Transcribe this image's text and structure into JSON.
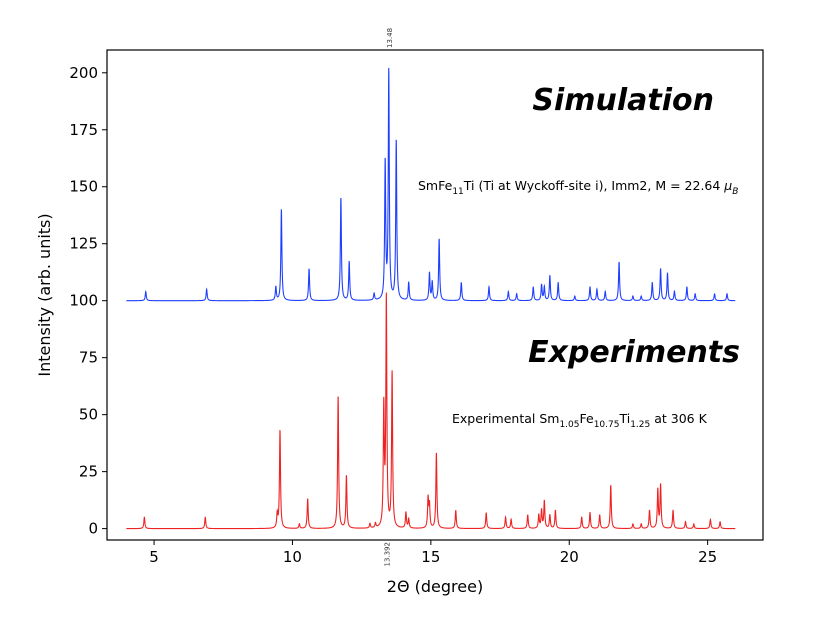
{
  "chart_data": {
    "type": "line",
    "xlabel": "2Θ (degree)",
    "ylabel": "Intensity (arb. units)",
    "xlim": [
      3.3,
      27.0
    ],
    "ylim": [
      -5,
      210
    ],
    "xticks": [
      5,
      10,
      15,
      20,
      25
    ],
    "yticks": [
      0,
      25,
      50,
      75,
      100,
      125,
      150,
      175,
      200
    ],
    "grid": false,
    "legend": "none",
    "annotations": {
      "simulation_title": "Simulation",
      "simulation_desc": {
        "pre": "SmFe",
        "sub1": "11",
        "mid": "Ti (Ti at Wyckoff-site i), Imm2, M = 22.64 ",
        "mu": "μ",
        "sub2": "B"
      },
      "experiments_title": "Experiments",
      "experiment_desc": {
        "pre": "Experimental Sm",
        "sub1": "1.05",
        "mid1": "Fe",
        "sub2": "10.75",
        "mid2": "Ti",
        "sub3": "1.25",
        "post": " at 306 K"
      },
      "peak_top": {
        "x": 13.48,
        "label": "13.48"
      },
      "peak_bottom": {
        "x": 13.392,
        "label": "13.392"
      }
    },
    "series": [
      {
        "color": "#1f3fff",
        "baseline": 100,
        "x_range": [
          4.0,
          26.0
        ],
        "peaks": [
          [
            4.7,
            4
          ],
          [
            6.9,
            5
          ],
          [
            9.4,
            6
          ],
          [
            9.6,
            40
          ],
          [
            10.6,
            14
          ],
          [
            11.75,
            45
          ],
          [
            12.05,
            17
          ],
          [
            12.95,
            3
          ],
          [
            13.35,
            60
          ],
          [
            13.48,
            100
          ],
          [
            13.75,
            70
          ],
          [
            14.2,
            8
          ],
          [
            14.95,
            12
          ],
          [
            15.05,
            8
          ],
          [
            15.3,
            27
          ],
          [
            16.1,
            8
          ],
          [
            17.1,
            6
          ],
          [
            17.8,
            4
          ],
          [
            18.1,
            3
          ],
          [
            18.7,
            6
          ],
          [
            19.0,
            7
          ],
          [
            19.1,
            6
          ],
          [
            19.3,
            11
          ],
          [
            19.6,
            8
          ],
          [
            20.2,
            2
          ],
          [
            20.75,
            6
          ],
          [
            21.0,
            5
          ],
          [
            21.3,
            4
          ],
          [
            21.8,
            17
          ],
          [
            22.3,
            2
          ],
          [
            22.6,
            2
          ],
          [
            23.0,
            8
          ],
          [
            23.3,
            14
          ],
          [
            23.55,
            12
          ],
          [
            23.8,
            4
          ],
          [
            24.25,
            6
          ],
          [
            24.55,
            3
          ],
          [
            25.25,
            3
          ],
          [
            25.7,
            3
          ]
        ]
      },
      {
        "color": "#ee2222",
        "baseline": 0,
        "x_range": [
          4.0,
          26.0
        ],
        "peaks": [
          [
            4.65,
            5
          ],
          [
            6.85,
            5
          ],
          [
            9.45,
            6
          ],
          [
            9.55,
            43
          ],
          [
            10.25,
            2
          ],
          [
            10.55,
            13
          ],
          [
            11.65,
            58
          ],
          [
            11.95,
            23
          ],
          [
            12.8,
            2
          ],
          [
            13.0,
            2
          ],
          [
            13.3,
            52
          ],
          [
            13.392,
            100
          ],
          [
            13.6,
            68
          ],
          [
            14.1,
            7
          ],
          [
            14.2,
            4
          ],
          [
            14.9,
            13
          ],
          [
            14.95,
            10
          ],
          [
            15.2,
            33
          ],
          [
            15.9,
            8
          ],
          [
            17.0,
            7
          ],
          [
            17.7,
            5
          ],
          [
            17.9,
            4
          ],
          [
            18.5,
            6
          ],
          [
            18.9,
            6
          ],
          [
            19.0,
            8
          ],
          [
            19.1,
            12
          ],
          [
            19.3,
            6
          ],
          [
            19.5,
            8
          ],
          [
            20.45,
            5
          ],
          [
            20.75,
            7
          ],
          [
            21.1,
            6
          ],
          [
            21.5,
            19
          ],
          [
            22.3,
            2
          ],
          [
            22.6,
            2
          ],
          [
            22.9,
            8
          ],
          [
            23.2,
            17
          ],
          [
            23.3,
            19
          ],
          [
            23.75,
            8
          ],
          [
            24.2,
            3
          ],
          [
            24.5,
            2
          ],
          [
            25.1,
            4
          ],
          [
            25.45,
            3
          ]
        ]
      }
    ]
  }
}
